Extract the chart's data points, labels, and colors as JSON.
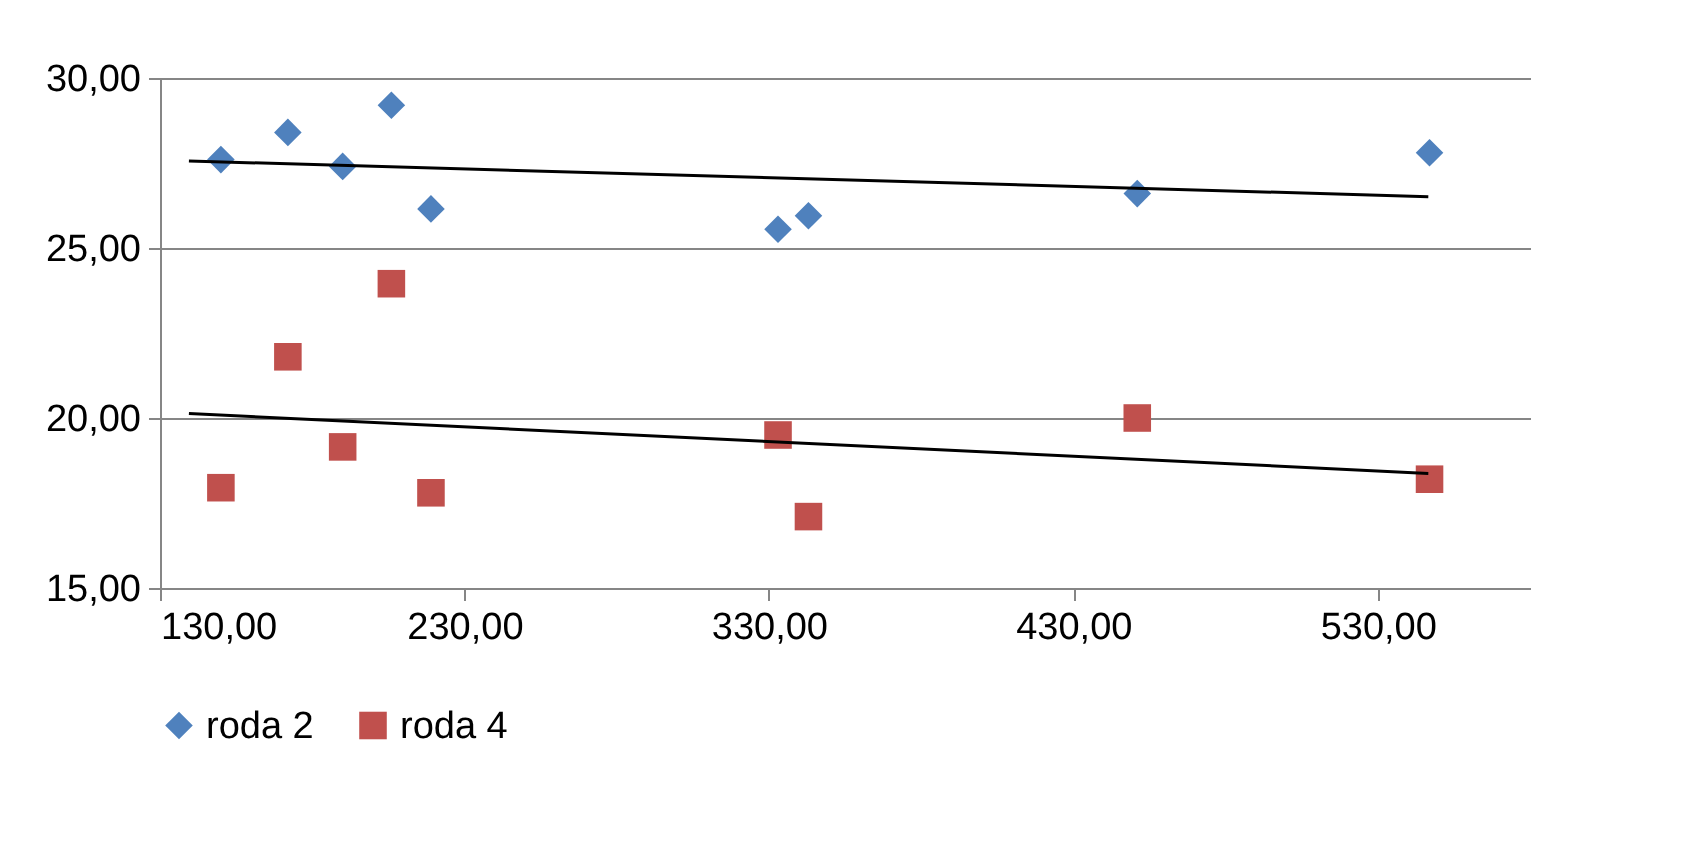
{
  "chart_data": {
    "type": "scatter",
    "xlim": [
      130,
      580
    ],
    "xticks": [
      {
        "value": 130,
        "label": "130,00"
      },
      {
        "value": 230,
        "label": "230,00"
      },
      {
        "value": 330,
        "label": "330,00"
      },
      {
        "value": 430,
        "label": "430,00"
      },
      {
        "value": 530,
        "label": "530,00"
      }
    ],
    "ylim": [
      15,
      30
    ],
    "yticks": [
      {
        "value": 15,
        "label": "15,00"
      },
      {
        "value": 20,
        "label": "20,00"
      },
      {
        "value": 25,
        "label": "25,00"
      },
      {
        "value": 30,
        "label": "30,00"
      }
    ],
    "grid": "y",
    "legend": "bottom",
    "series": [
      {
        "name": "roda 2",
        "color": "#4f81bd",
        "marker": "diamond",
        "x": [
          150,
          172,
          190,
          206,
          219,
          333,
          343,
          451,
          547
        ],
        "values": [
          27.6,
          28.4,
          27.4,
          29.2,
          26.15,
          25.55,
          25.95,
          26.6,
          27.8
        ]
      },
      {
        "name": "roda 4",
        "color": "#c0504d",
        "marker": "square",
        "x": [
          150,
          172,
          190,
          206,
          219,
          333,
          343,
          451,
          547
        ],
        "values": [
          17.95,
          21.8,
          19.15,
          23.95,
          17.8,
          19.5,
          17.1,
          20.0,
          18.2
        ]
      },
      {
        "type": "line",
        "color": "#000000",
        "x": [
          139.5,
          546.6
        ],
        "values": [
          27.56,
          26.51
        ]
      },
      {
        "type": "line",
        "color": "#000000",
        "x": [
          139.5,
          546.6
        ],
        "values": [
          20.13,
          18.37
        ]
      }
    ]
  }
}
